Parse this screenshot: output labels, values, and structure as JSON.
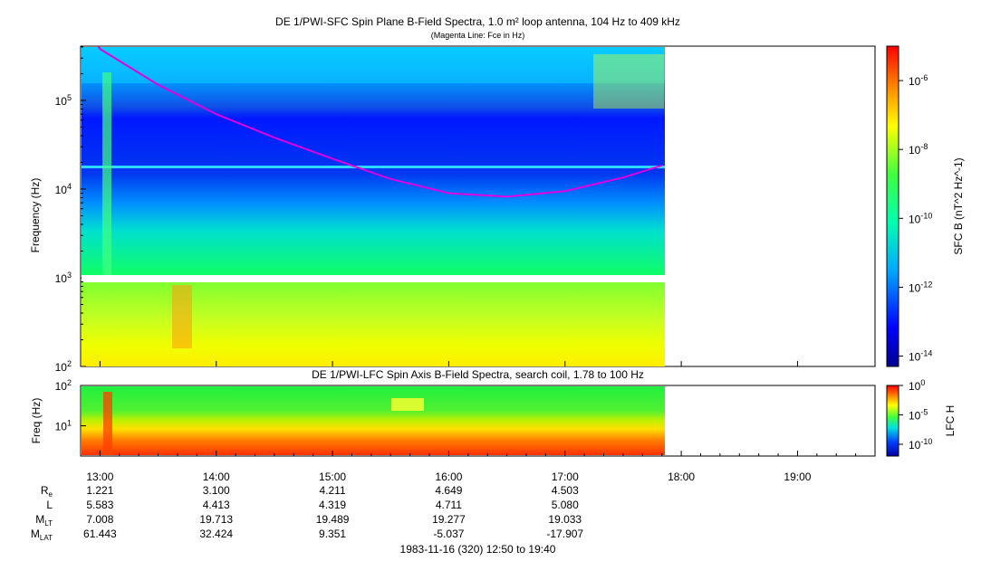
{
  "chart_data": [
    {
      "type": "heatmap",
      "title": "DE 1/PWI-SFC  Spin Plane B-Field Spectra, 1.0 m² loop antenna, 104 Hz to 409 kHz",
      "subtitle": "(Magenta Line: Fce in Hz)",
      "ylabel": "Frequency (Hz)",
      "yscale": "log",
      "ylim": [
        100,
        409000
      ],
      "y_ticks": [
        "10^2",
        "10^3",
        "10^4",
        "10^5"
      ],
      "colorbar_label": "SFC B (nT^2 Hz^-1)",
      "colorbar_scale": "log",
      "colorbar_range": [
        5e-15,
        1e-05
      ],
      "colorbar_ticks": [
        "10^-6",
        "10^-8",
        "10^-10",
        "10^-12",
        "10^-14"
      ],
      "data_end_time": "17:50",
      "fce_line": {
        "name": "Fce",
        "color": "#e000e0",
        "x": [
          "12:50",
          "13:00",
          "13:30",
          "14:00",
          "14:30",
          "15:00",
          "15:30",
          "16:00",
          "16:30",
          "17:00",
          "17:30",
          "17:50"
        ],
        "y": [
          900000,
          380000,
          150000,
          70000,
          38000,
          22000,
          13000,
          9000,
          8200,
          9500,
          13500,
          18500
        ]
      }
    },
    {
      "type": "heatmap",
      "title": "DE 1/PWI-LFC  Spin Axis B-Field Spectra, search coil, 1.78 to 100 Hz",
      "ylabel": "Freq (Hz)",
      "yscale": "log",
      "ylim": [
        1.78,
        100
      ],
      "y_ticks": [
        "10^1",
        "10^2"
      ],
      "colorbar_label": "LFC H",
      "colorbar_scale": "log",
      "colorbar_range": [
        1e-12,
        1
      ],
      "colorbar_ticks": [
        "10^0",
        "10^-5",
        "10^-10"
      ],
      "data_end_time": "17:50"
    }
  ],
  "x_axis": {
    "range": [
      "12:50",
      "19:40"
    ],
    "tick_labels": [
      "13:00",
      "14:00",
      "15:00",
      "16:00",
      "17:00",
      "18:00",
      "19:00"
    ]
  },
  "ephemeris": {
    "rows": [
      {
        "label": "R",
        "sub": "e",
        "values": [
          "1.221",
          "3.100",
          "4.211",
          "4.649",
          "4.503"
        ]
      },
      {
        "label": "L",
        "sub": "",
        "values": [
          "5.583",
          "4.413",
          "4.319",
          "4.711",
          "5.080"
        ]
      },
      {
        "label": "M",
        "sub": "LT",
        "values": [
          "7.008",
          "19.713",
          "19.489",
          "19.277",
          "19.033"
        ]
      },
      {
        "label": "M",
        "sub": "LAT",
        "values": [
          "61.443",
          "32.424",
          "9.351",
          "-5.037",
          "-17.907"
        ]
      }
    ]
  },
  "footer": "1983-11-16 (320) 12:50 to 19:40"
}
